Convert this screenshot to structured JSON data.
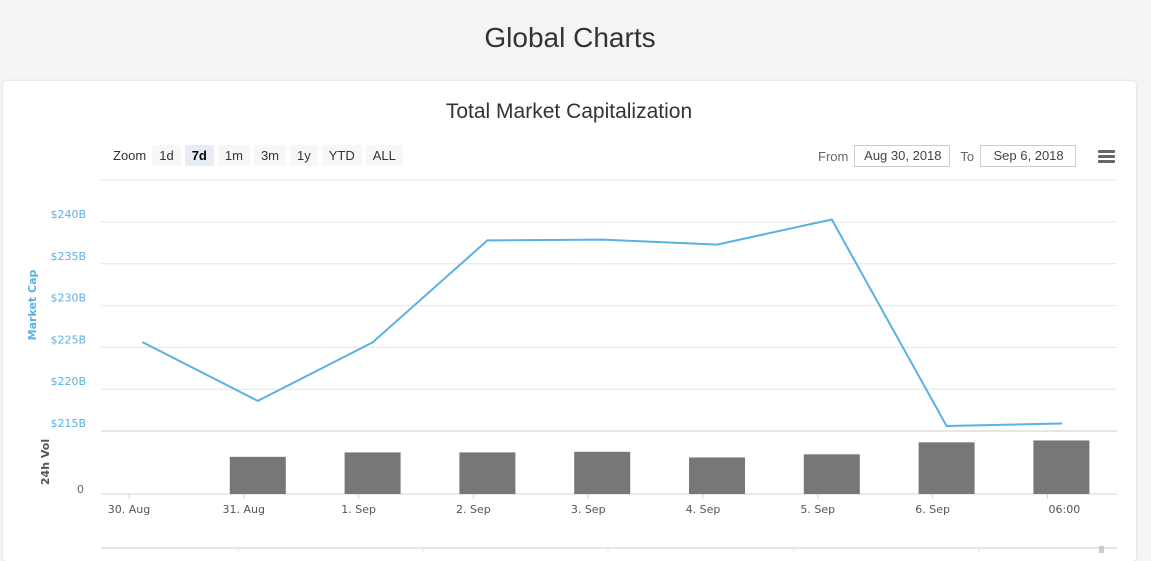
{
  "page": {
    "title": "Global Charts"
  },
  "toolbar": {
    "zoom_label": "Zoom",
    "zoom_buttons": [
      "1d",
      "7d",
      "1m",
      "3m",
      "1y",
      "YTD",
      "ALL"
    ],
    "active_zoom": "7d",
    "from_label": "From",
    "from_value": "Aug 30, 2018",
    "to_label": "To",
    "to_value": "Sep 6, 2018"
  },
  "colors": {
    "line": "#5ab1e4",
    "bars": "#777777",
    "axis_label_market_cap": "#5ab1e4",
    "axis_label_volume": "#555555"
  },
  "chart_data": {
    "type": "line",
    "title": "Total Market Capitalization",
    "x": [
      "30. Aug",
      "31. Aug",
      "1. Sep",
      "2. Sep",
      "3. Sep",
      "4. Sep",
      "5. Sep",
      "6. Sep",
      "06:00"
    ],
    "series": [
      {
        "name": "Market Cap",
        "type": "line",
        "values": [
          225.6,
          218.6,
          225.6,
          237.8,
          237.9,
          237.3,
          240.3,
          215.6,
          215.9
        ]
      },
      {
        "name": "24h Vol",
        "type": "bar",
        "values": [
          null,
          0.59,
          0.66,
          0.66,
          0.67,
          0.58,
          0.63,
          0.82,
          0.85
        ]
      }
    ],
    "ylabel": "Market Cap",
    "y_ticks": [
      "$215B",
      "$220B",
      "$225B",
      "$230B",
      "$235B",
      "$240B"
    ],
    "ylim": [
      215,
      240
    ],
    "y2label": "24h Vol",
    "y2_ticks": [
      "0"
    ],
    "grid": true,
    "legend": "none"
  }
}
